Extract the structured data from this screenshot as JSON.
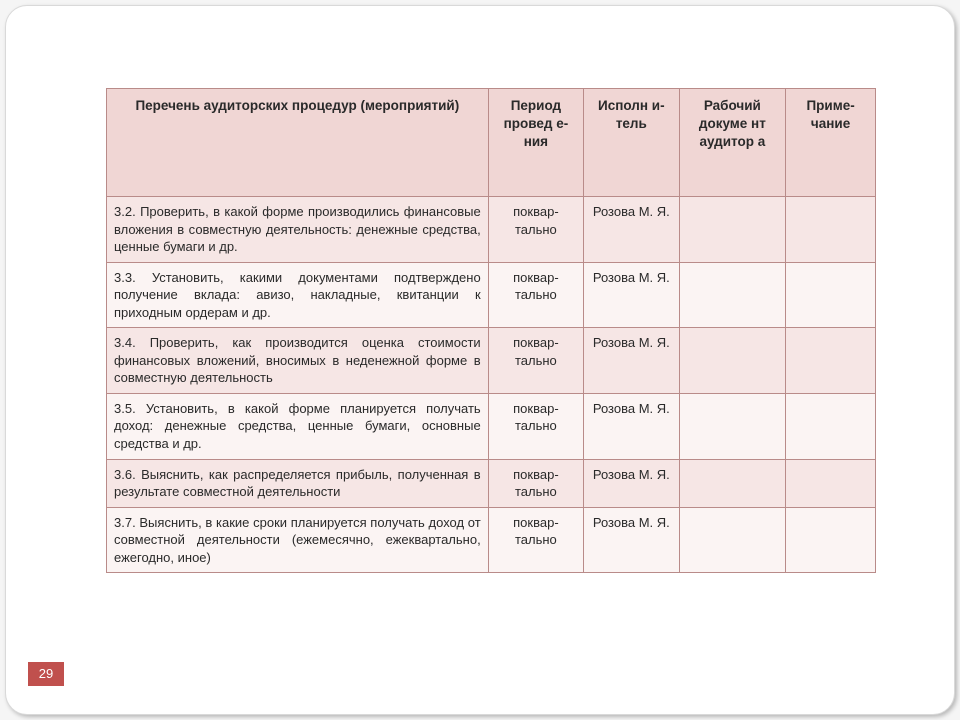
{
  "page_number": "29",
  "headers": {
    "procedures": "Перечень аудиторских процедур (мероприятий)",
    "period": "Период провед е- ния",
    "executor": "Исполн и- тель",
    "workdoc": "Рабочий докуме нт аудитор а",
    "note": "Приме- чание"
  },
  "rows": [
    {
      "proc": "3.2. Проверить, в какой форме производились финансовые вложения в совместную деятельность: денежные средства, ценные бумаги и др.",
      "period": "поквар- тально",
      "exec": "Розова М. Я.",
      "workdoc": "",
      "note": ""
    },
    {
      "proc": "3.3. Установить, какими документами подтверждено получение вклада: авизо, накладные, квитанции к приходным ордерам и др.",
      "period": "поквар- тально",
      "exec": "Розова М. Я.",
      "workdoc": "",
      "note": ""
    },
    {
      "proc": "3.4. Проверить, как производится оценка стоимости финансовых вложений, вносимых в неденежной форме в совместную деятельность",
      "period": "поквар- тально",
      "exec": "Розова М. Я.",
      "workdoc": "",
      "note": ""
    },
    {
      "proc": "3.5. Установить, в какой форме планируется получать доход: денежные средства, ценные бумаги, основные средства и др.",
      "period": "поквар- тально",
      "exec": "Розова М. Я.",
      "workdoc": "",
      "note": ""
    },
    {
      "proc": "3.6. Выяснить, как распределяется прибыль, полученная в результате совместной деятельности",
      "period": "поквар- тально",
      "exec": "Розова М. Я.",
      "workdoc": "",
      "note": ""
    },
    {
      "proc": "3.7. Выяснить, в какие сроки планируется получать доход от совместной деятельности (ежемесячно, ежеквартально, ежегодно, иное)",
      "period": "поквар- тально",
      "exec": "Розова М. Я.",
      "workdoc": "",
      "note": ""
    }
  ]
}
